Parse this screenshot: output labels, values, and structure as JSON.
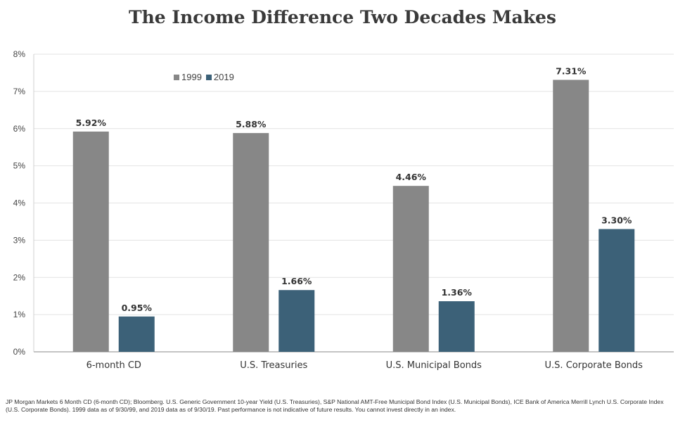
{
  "chart_data": {
    "type": "bar",
    "title": "The Income Difference Two Decades Makes",
    "categories": [
      "6-month CD",
      "U.S. Treasuries",
      "U.S. Municipal Bonds",
      "U.S. Corporate Bonds"
    ],
    "series": [
      {
        "name": "1999",
        "color": "#878787",
        "values": [
          5.92,
          5.88,
          4.46,
          7.31
        ],
        "labels": [
          "5.92%",
          "5.88%",
          "4.46%",
          "7.31%"
        ]
      },
      {
        "name": "2019",
        "color": "#3c6178",
        "values": [
          0.95,
          1.66,
          1.36,
          3.3
        ],
        "labels": [
          "0.95%",
          "1.66%",
          "1.36%",
          "3.30%"
        ]
      }
    ],
    "ylim": [
      0,
      8
    ],
    "yticks": [
      0,
      1,
      2,
      3,
      4,
      5,
      6,
      7,
      8
    ],
    "ytick_labels": [
      "0%",
      "1%",
      "2%",
      "3%",
      "4%",
      "5%",
      "6%",
      "7%",
      "8%"
    ],
    "grid": true,
    "legend_position": "top-left"
  },
  "footnote": "JP Morgan Markets 6 Month CD (6-month CD); Bloomberg. U.S. Generic Government 10-year Yield (U.S. Treasuries), S&P National AMT-Free Municipal Bond Index (U.S. Municipal Bonds), ICE Bank of America Merrill Lynch U.S. Corporate Index (U.S. Corporate Bonds). 1999 data as of 9/30/99, and 2019 data as of 9/30/19. Past performance is not indicative of future results. You cannot invest directly in an index."
}
